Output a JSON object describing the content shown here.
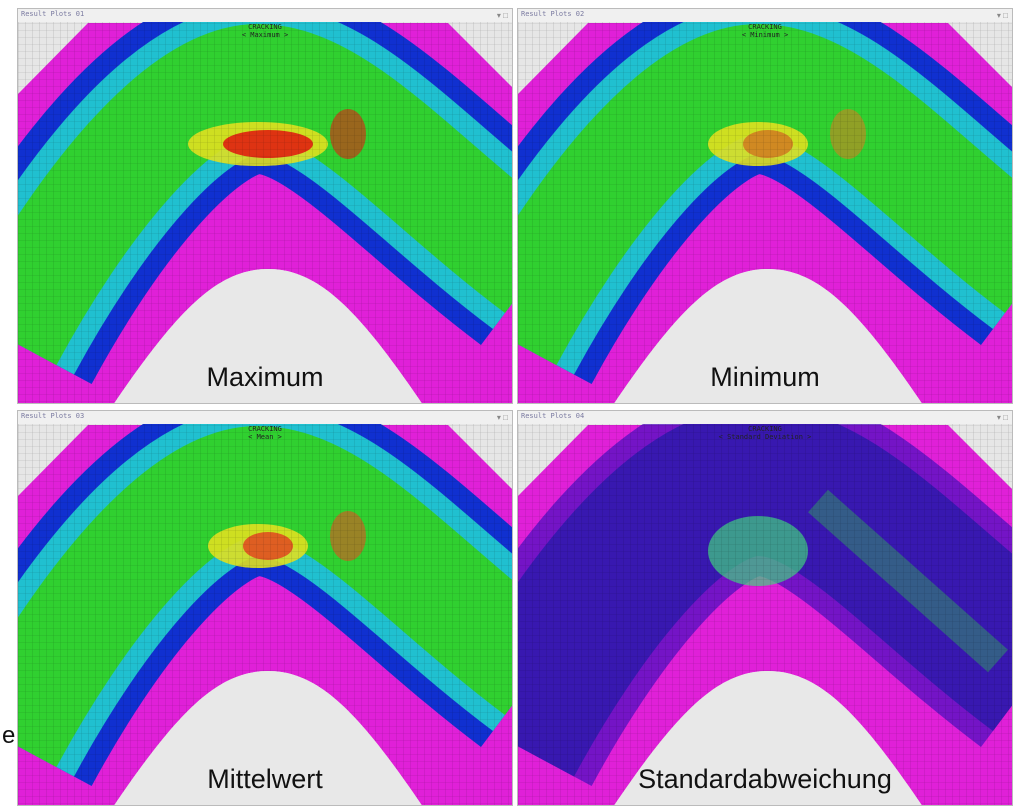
{
  "panels": [
    {
      "header": "Result Plots 01",
      "title": "CRACKING",
      "subtitle": "< Maximum >",
      "label": "Maximum"
    },
    {
      "header": "Result Plots 02",
      "title": "CRACKING",
      "subtitle": "< Minimum >",
      "label": "Minimum"
    },
    {
      "header": "Result Plots 03",
      "title": "CRACKING",
      "subtitle": "< Mean >",
      "label": "Mittelwert"
    },
    {
      "header": "Result Plots 04",
      "title": "CRACKING",
      "subtitle": "< Standard Deviation >",
      "label": "Standardabweichung"
    }
  ],
  "side_fragment": "e"
}
